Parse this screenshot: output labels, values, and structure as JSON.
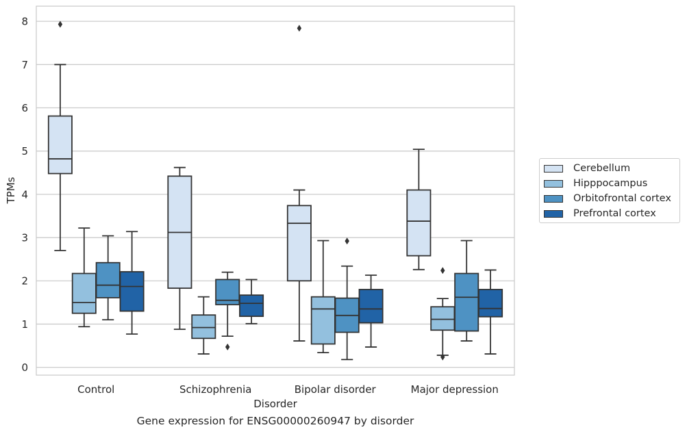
{
  "caption": "Gene expression for ENSG00000260947 by disorder",
  "colors": {
    "Cerebellum": "#d4e3f3",
    "Hipppocampus": "#93c0de",
    "Orbitofrontal cortex": "#4e92c3",
    "Prefrontal cortex": "#2163a6",
    "grid": "#cccccc",
    "line": "#333333"
  },
  "chart_data": {
    "type": "box",
    "xlabel": "Disorder",
    "ylabel": "TPMs",
    "ylim": [
      -0.18,
      8.35
    ],
    "yticks": [
      0,
      1,
      2,
      3,
      4,
      5,
      6,
      7,
      8
    ],
    "grid": true,
    "legend_position": "right",
    "categories": [
      "Control",
      "Schizophrenia",
      "Bipolar disorder",
      "Major depression"
    ],
    "series": [
      {
        "name": "Cerebellum",
        "boxes": [
          {
            "whislo": 2.7,
            "q1": 4.48,
            "med": 4.82,
            "q3": 5.81,
            "whishi": 7.0,
            "fliers": [
              7.93
            ]
          },
          {
            "whislo": 0.88,
            "q1": 1.83,
            "med": 3.12,
            "q3": 4.42,
            "whishi": 4.62,
            "fliers": []
          },
          {
            "whislo": 0.61,
            "q1": 2.0,
            "med": 3.33,
            "q3": 3.74,
            "whishi": 4.1,
            "fliers": [
              7.84
            ]
          },
          {
            "whislo": 2.26,
            "q1": 2.58,
            "med": 3.38,
            "q3": 4.1,
            "whishi": 5.04,
            "fliers": []
          }
        ]
      },
      {
        "name": "Hipppocampus",
        "boxes": [
          {
            "whislo": 0.94,
            "q1": 1.25,
            "med": 1.5,
            "q3": 2.17,
            "whishi": 3.22,
            "fliers": []
          },
          {
            "whislo": 0.31,
            "q1": 0.67,
            "med": 0.92,
            "q3": 1.21,
            "whishi": 1.63,
            "fliers": []
          },
          {
            "whislo": 0.34,
            "q1": 0.54,
            "med": 1.35,
            "q3": 1.63,
            "whishi": 2.93,
            "fliers": []
          },
          {
            "whislo": 0.28,
            "q1": 0.86,
            "med": 1.11,
            "q3": 1.4,
            "whishi": 1.59,
            "fliers": [
              2.24,
              0.24
            ]
          }
        ]
      },
      {
        "name": "Orbitofrontal cortex",
        "boxes": [
          {
            "whislo": 1.1,
            "q1": 1.61,
            "med": 1.9,
            "q3": 2.42,
            "whishi": 3.04,
            "fliers": []
          },
          {
            "whislo": 0.72,
            "q1": 1.45,
            "med": 1.55,
            "q3": 2.03,
            "whishi": 2.2,
            "fliers": [
              0.47
            ]
          },
          {
            "whislo": 0.18,
            "q1": 0.81,
            "med": 1.2,
            "q3": 1.6,
            "whishi": 2.34,
            "fliers": [
              2.92
            ]
          },
          {
            "whislo": 0.61,
            "q1": 0.84,
            "med": 1.62,
            "q3": 2.17,
            "whishi": 2.93,
            "fliers": []
          }
        ]
      },
      {
        "name": "Prefrontal cortex",
        "boxes": [
          {
            "whislo": 0.77,
            "q1": 1.3,
            "med": 1.87,
            "q3": 2.21,
            "whishi": 3.14,
            "fliers": []
          },
          {
            "whislo": 1.01,
            "q1": 1.18,
            "med": 1.48,
            "q3": 1.67,
            "whishi": 2.03,
            "fliers": []
          },
          {
            "whislo": 0.47,
            "q1": 1.03,
            "med": 1.35,
            "q3": 1.8,
            "whishi": 2.13,
            "fliers": []
          },
          {
            "whislo": 0.31,
            "q1": 1.17,
            "med": 1.36,
            "q3": 1.8,
            "whishi": 2.25,
            "fliers": []
          }
        ]
      }
    ]
  }
}
